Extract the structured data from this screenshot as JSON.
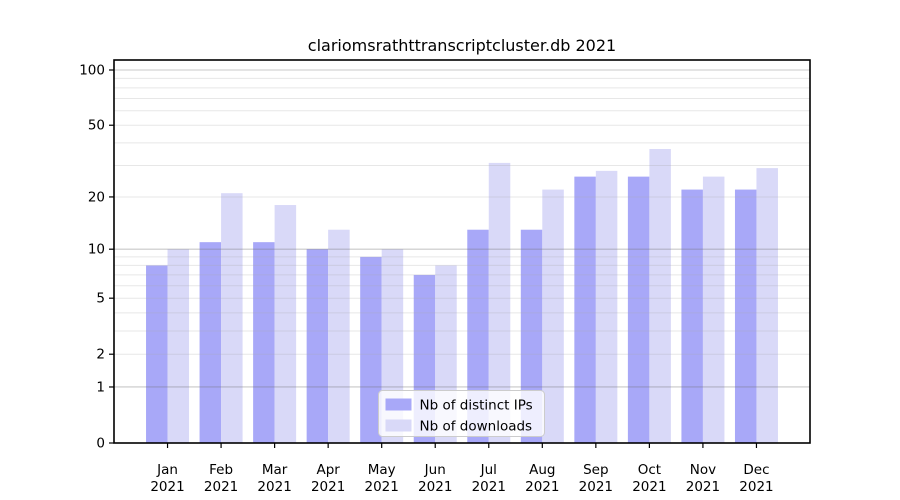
{
  "page": {
    "background": "#ffffff"
  },
  "chart_data": {
    "type": "bar",
    "title": "clariomsrathttranscriptcluster.db 2021",
    "xlabel": "",
    "ylabel": "",
    "yscale": "log1p",
    "grid": "on",
    "categories": [
      "Jan 2021",
      "Feb 2021",
      "Mar 2021",
      "Apr 2021",
      "May 2021",
      "Jun 2021",
      "Jul 2021",
      "Aug 2021",
      "Sep 2021",
      "Oct 2021",
      "Nov 2021",
      "Dec 2021"
    ],
    "series": [
      {
        "name": "Nb of distinct IPs",
        "color": "#a8a8f8",
        "values": [
          8,
          11,
          11,
          10,
          9,
          7,
          13,
          13,
          26,
          26,
          22,
          22
        ]
      },
      {
        "name": "Nb of downloads",
        "color": "#d9d9f8",
        "values": [
          10,
          21,
          18,
          13,
          10,
          8,
          31,
          22,
          28,
          37,
          26,
          29
        ]
      }
    ],
    "ylim": [
      0,
      113
    ],
    "yticks": [
      {
        "value": 100,
        "label": "100"
      },
      {
        "value": 50,
        "label": "50"
      },
      {
        "value": 20,
        "label": "20"
      },
      {
        "value": 10,
        "label": "10"
      },
      {
        "value": 5,
        "label": "5"
      },
      {
        "value": 2,
        "label": "2"
      },
      {
        "value": 1,
        "label": "1"
      },
      {
        "value": 0,
        "label": "0"
      }
    ],
    "minor_gridline_values": [
      2,
      3,
      4,
      5,
      6,
      7,
      8,
      9,
      20,
      30,
      40,
      50,
      60,
      70,
      80,
      90
    ],
    "decade_gridline_values": [
      1,
      10,
      100
    ],
    "legend": {
      "position": "lower center",
      "entries": [
        "Nb of distinct IPs",
        "Nb of downloads"
      ]
    }
  },
  "colors": {
    "bar_distinct_ips": "#a8a8f8",
    "bar_downloads": "#d9d9f8",
    "grid_minor": "rgba(170,170,170,0.28)",
    "grid_decade": "rgba(110,110,110,0.38)",
    "axis_spine": "#000000",
    "legend_border": "#cccccc",
    "legend_background": "rgba(255,255,255,0.8)",
    "text": "#000000"
  }
}
